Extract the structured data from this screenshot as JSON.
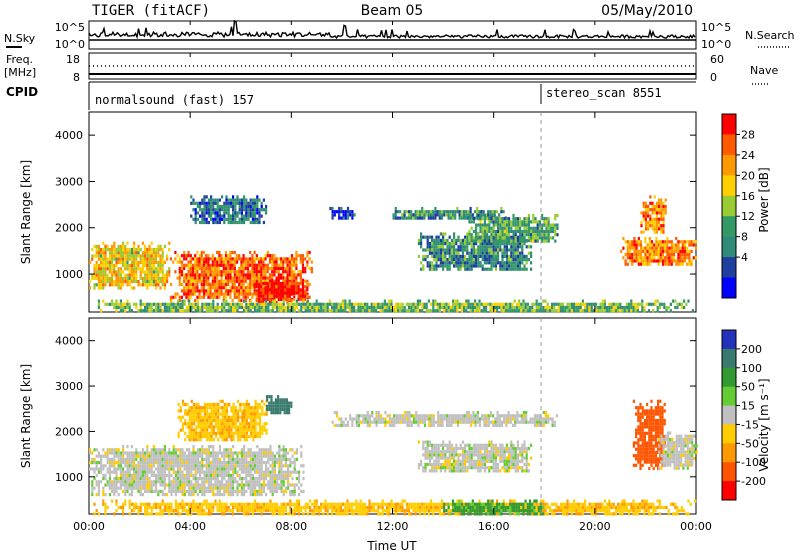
{
  "header": {
    "title_left": "TIGER (fitACF)",
    "title_center": "Beam 05",
    "title_right": "05/May/2010"
  },
  "status_panels": {
    "nsky_label": "N.Sky",
    "nsky_ticks": [
      "10^5",
      "10^0"
    ],
    "nsearch_label": "N.Search",
    "nsearch_ticks": [
      "10^5",
      "10^0"
    ],
    "freq_label": "Freq.",
    "freq_unit": "[MHz]",
    "freq_ticks": [
      "18",
      "8"
    ],
    "nave_label": "Nave",
    "nave_ticks": [
      "60",
      "0"
    ],
    "cpid_label": "CPID",
    "modes": [
      {
        "name": "normalsound (fast) 157",
        "start_hour": 0
      },
      {
        "name": "stereo_scan 8551",
        "start_hour": 18
      }
    ]
  },
  "colorbars": {
    "power": {
      "label": "Power [dB]",
      "ticks": [
        "28",
        "24",
        "20",
        "16",
        "12",
        "8",
        "4"
      ],
      "colors": [
        "#ff0000",
        "#ff5a00",
        "#ff9900",
        "#ffd000",
        "#99cc33",
        "#339966",
        "#2f8a78",
        "#1f3fa0",
        "#0000ff"
      ]
    },
    "velocity": {
      "label": "Velocity [m s⁻¹]",
      "ticks": [
        "200",
        "100",
        "50",
        "15",
        "-15",
        "-50",
        "-100",
        "-200"
      ],
      "colors": [
        "#2233bb",
        "#3a7a6e",
        "#339933",
        "#66cc33",
        "#c0c0c0",
        "#ffcc00",
        "#ff9900",
        "#ff5500",
        "#ff0000"
      ]
    }
  },
  "chart_data": [
    {
      "type": "heatmap",
      "panel": "power",
      "xlabel": "",
      "ylabel": "Slant Range [km]",
      "xlim": [
        0,
        24
      ],
      "ylim": [
        180,
        4500
      ],
      "yticks": [
        "4000",
        "3000",
        "2000",
        "1000"
      ],
      "color_scale_label": "Power [dB]",
      "regions": [
        {
          "x": [
            0,
            3.2
          ],
          "y": [
            700,
            1700
          ],
          "value": 20
        },
        {
          "x": [
            3.2,
            8.8
          ],
          "y": [
            450,
            1500
          ],
          "value": 26
        },
        {
          "x": [
            6.5,
            8.6
          ],
          "y": [
            400,
            900
          ],
          "value": 30
        },
        {
          "x": [
            4.0,
            7.0
          ],
          "y": [
            2100,
            2700
          ],
          "value": 8
        },
        {
          "x": [
            0,
            24
          ],
          "y": [
            200,
            450
          ],
          "value": 14
        },
        {
          "x": [
            9.5,
            10.5
          ],
          "y": [
            2200,
            2450
          ],
          "value": 6
        },
        {
          "x": [
            12.0,
            16.5
          ],
          "y": [
            2200,
            2450
          ],
          "value": 10
        },
        {
          "x": [
            13.0,
            17.5
          ],
          "y": [
            1100,
            1900
          ],
          "value": 10
        },
        {
          "x": [
            15.0,
            18.5
          ],
          "y": [
            1700,
            2300
          ],
          "value": 12
        },
        {
          "x": [
            21.0,
            24.0
          ],
          "y": [
            1200,
            1800
          ],
          "value": 24
        },
        {
          "x": [
            21.8,
            22.8
          ],
          "y": [
            1900,
            2700
          ],
          "value": 24
        }
      ]
    },
    {
      "type": "heatmap",
      "panel": "velocity",
      "xlabel": "Time UT",
      "ylabel": "Slant Range [km]",
      "xlim": [
        0,
        24
      ],
      "ylim": [
        180,
        4500
      ],
      "xticks": [
        "00:00",
        "04:00",
        "08:00",
        "12:00",
        "16:00",
        "20:00",
        "00:00"
      ],
      "yticks": [
        "4000",
        "3000",
        "2000",
        "1000"
      ],
      "color_scale_label": "Velocity [m s⁻¹]",
      "regions": [
        {
          "x": [
            0,
            8.5
          ],
          "y": [
            600,
            1700
          ],
          "value": 0
        },
        {
          "x": [
            3.5,
            7.0
          ],
          "y": [
            1800,
            2700
          ],
          "value": -40
        },
        {
          "x": [
            7.0,
            8.0
          ],
          "y": [
            2400,
            2800
          ],
          "value": 150
        },
        {
          "x": [
            0,
            24
          ],
          "y": [
            200,
            500
          ],
          "value": -40
        },
        {
          "x": [
            14.0,
            18.0
          ],
          "y": [
            200,
            500
          ],
          "value": 60
        },
        {
          "x": [
            9.5,
            18.5
          ],
          "y": [
            2150,
            2450
          ],
          "value": 0
        },
        {
          "x": [
            13.0,
            17.5
          ],
          "y": [
            1100,
            1800
          ],
          "value": 0
        },
        {
          "x": [
            21.5,
            22.8
          ],
          "y": [
            1200,
            2700
          ],
          "value": -150
        },
        {
          "x": [
            22.5,
            24.0
          ],
          "y": [
            1200,
            2000
          ],
          "value": 0
        }
      ]
    }
  ]
}
